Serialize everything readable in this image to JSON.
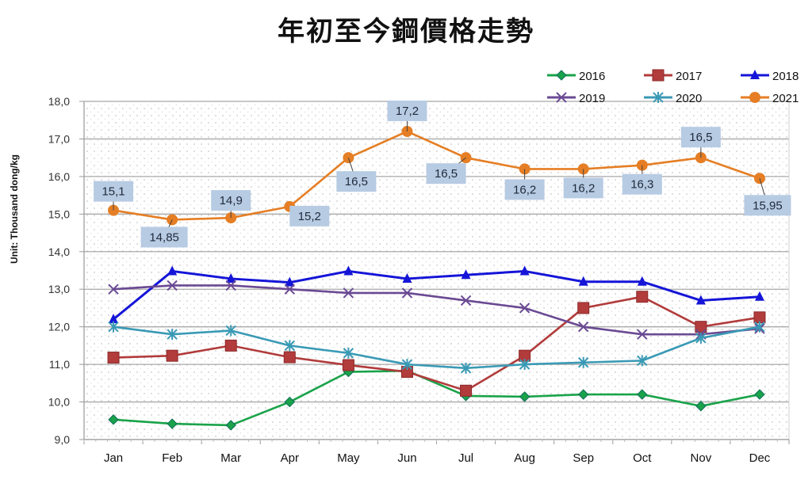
{
  "chart_data": {
    "type": "line",
    "title": "年初至今鋼價格走勢",
    "xlabel": "",
    "ylabel": "Unit: Thousand dong/kg",
    "ylim": [
      9.0,
      18.0
    ],
    "yticks": [
      "9,0",
      "10,0",
      "11,0",
      "12,0",
      "13,0",
      "14,0",
      "15,0",
      "16,0",
      "17,0",
      "18,0"
    ],
    "grid": true,
    "legend_position": "top-right",
    "categories": [
      "Jan",
      "Feb",
      "Mar",
      "Apr",
      "May",
      "Jun",
      "Jul",
      "Aug",
      "Sep",
      "Oct",
      "Nov",
      "Dec"
    ],
    "series": [
      {
        "name": "2016",
        "color": "#1aa34a",
        "marker": "diamond",
        "values": [
          9.53,
          9.42,
          9.38,
          10.0,
          10.8,
          10.83,
          10.16,
          10.14,
          10.2,
          10.2,
          9.89,
          10.2
        ]
      },
      {
        "name": "2017",
        "color": "#b23b3b",
        "marker": "square",
        "values": [
          11.18,
          11.23,
          11.5,
          11.19,
          10.98,
          10.8,
          10.3,
          11.23,
          12.5,
          12.8,
          12.0,
          12.25
        ]
      },
      {
        "name": "2018",
        "color": "#1515d8",
        "marker": "triangle",
        "values": [
          12.2,
          13.48,
          13.28,
          13.18,
          13.48,
          13.28,
          13.38,
          13.48,
          13.2,
          13.2,
          12.7,
          12.8
        ]
      },
      {
        "name": "2019",
        "color": "#6a4a93",
        "marker": "x",
        "values": [
          13.0,
          13.1,
          13.1,
          13.0,
          12.9,
          12.9,
          12.7,
          12.5,
          12.0,
          11.8,
          11.8,
          11.95
        ]
      },
      {
        "name": "2020",
        "color": "#3a9ab5",
        "marker": "star",
        "values": [
          12.0,
          11.8,
          11.9,
          11.5,
          11.3,
          11.0,
          10.9,
          11.0,
          11.05,
          11.1,
          11.7,
          12.0
        ]
      },
      {
        "name": "2021",
        "color": "#e57e24",
        "marker": "circle",
        "values": [
          15.1,
          14.85,
          14.9,
          15.2,
          16.5,
          17.2,
          16.5,
          16.2,
          16.2,
          16.3,
          16.5,
          15.95
        ],
        "data_labels": [
          "15,1",
          "14,85",
          "14,9",
          "15,2",
          "16,5",
          "17,2",
          "16,5",
          "16,2",
          "16,2",
          "16,3",
          "16,5",
          "15,95"
        ]
      }
    ]
  }
}
